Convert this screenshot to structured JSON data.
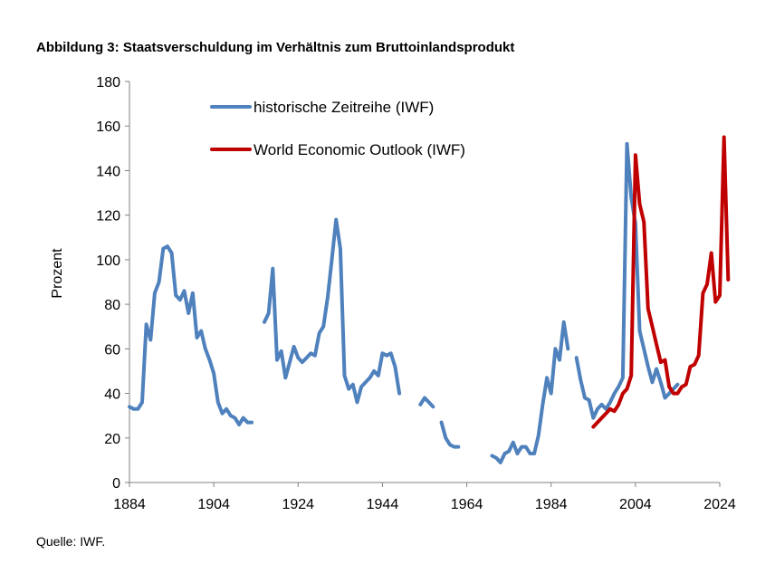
{
  "title": "Abbildung 3: Staatsverschuldung im Verhältnis zum Bruttoinlandsprodukt",
  "source": "Quelle: IWF.",
  "chart_data": {
    "type": "line",
    "title": "Abbildung 3: Staatsverschuldung im Verhältnis zum Bruttoinlandsprodukt",
    "xlabel": "",
    "ylabel": "Prozent",
    "xlim": [
      1884,
      2024
    ],
    "ylim": [
      0,
      180
    ],
    "xticks": [
      1884,
      1904,
      1924,
      1944,
      1964,
      1984,
      2004,
      2024
    ],
    "yticks": [
      0,
      20,
      40,
      60,
      80,
      100,
      120,
      140,
      160,
      180
    ],
    "grid": false,
    "legend_position": "top-left",
    "series": [
      {
        "name": "historische Zeitreihe (IWF)",
        "color": "#4F81BD",
        "segments": [
          [
            [
              1884,
              34
            ],
            [
              1885,
              33
            ],
            [
              1886,
              33
            ],
            [
              1887,
              36
            ],
            [
              1888,
              71
            ],
            [
              1889,
              64
            ],
            [
              1890,
              85
            ],
            [
              1891,
              90
            ],
            [
              1892,
              105
            ],
            [
              1893,
              106
            ],
            [
              1894,
              103
            ],
            [
              1895,
              84
            ],
            [
              1896,
              82
            ],
            [
              1897,
              86
            ],
            [
              1898,
              76
            ],
            [
              1899,
              85
            ],
            [
              1900,
              65
            ],
            [
              1901,
              68
            ],
            [
              1902,
              60
            ],
            [
              1903,
              55
            ],
            [
              1904,
              49
            ],
            [
              1905,
              36
            ],
            [
              1906,
              31
            ],
            [
              1907,
              33
            ],
            [
              1908,
              30
            ],
            [
              1909,
              29
            ],
            [
              1910,
              26
            ],
            [
              1911,
              29
            ],
            [
              1912,
              27
            ],
            [
              1913,
              27
            ]
          ],
          [
            [
              1916,
              72
            ],
            [
              1917,
              76
            ],
            [
              1918,
              96
            ],
            [
              1919,
              55
            ],
            [
              1920,
              59
            ],
            [
              1921,
              47
            ],
            [
              1922,
              54
            ],
            [
              1923,
              61
            ],
            [
              1924,
              56
            ],
            [
              1925,
              54
            ],
            [
              1926,
              56
            ],
            [
              1927,
              58
            ],
            [
              1928,
              57
            ],
            [
              1929,
              67
            ],
            [
              1930,
              70
            ],
            [
              1931,
              83
            ],
            [
              1932,
              100
            ],
            [
              1933,
              118
            ],
            [
              1934,
              105
            ],
            [
              1935,
              48
            ],
            [
              1936,
              42
            ],
            [
              1937,
              44
            ],
            [
              1938,
              36
            ],
            [
              1939,
              43
            ],
            [
              1940,
              45
            ],
            [
              1941,
              47
            ],
            [
              1942,
              50
            ],
            [
              1943,
              48
            ],
            [
              1944,
              58
            ],
            [
              1945,
              57
            ],
            [
              1946,
              58
            ],
            [
              1947,
              52
            ],
            [
              1948,
              40
            ]
          ],
          [
            [
              1953,
              35
            ],
            [
              1954,
              38
            ],
            [
              1955,
              36
            ],
            [
              1956,
              34
            ]
          ],
          [
            [
              1958,
              27
            ],
            [
              1959,
              20
            ],
            [
              1960,
              17
            ],
            [
              1961,
              16
            ],
            [
              1962,
              16
            ]
          ],
          [
            [
              1970,
              12
            ],
            [
              1971,
              11
            ],
            [
              1972,
              9
            ],
            [
              1973,
              13
            ],
            [
              1974,
              14
            ],
            [
              1975,
              18
            ],
            [
              1976,
              13
            ],
            [
              1977,
              16
            ],
            [
              1978,
              16
            ],
            [
              1979,
              13
            ],
            [
              1980,
              13
            ],
            [
              1981,
              21
            ],
            [
              1982,
              35
            ],
            [
              1983,
              47
            ],
            [
              1984,
              40
            ],
            [
              1985,
              60
            ],
            [
              1986,
              55
            ],
            [
              1987,
              72
            ],
            [
              1988,
              60
            ]
          ],
          [
            [
              1990,
              56
            ],
            [
              1991,
              46
            ],
            [
              1992,
              38
            ],
            [
              1993,
              37
            ],
            [
              1994,
              29
            ],
            [
              1995,
              33
            ],
            [
              1996,
              35
            ],
            [
              1997,
              33
            ],
            [
              1998,
              36
            ],
            [
              1999,
              40
            ],
            [
              2000,
              43
            ],
            [
              2001,
              47
            ],
            [
              2002,
              152
            ],
            [
              2003,
              128
            ],
            [
              2004,
              116
            ],
            [
              2005,
              68
            ],
            [
              2006,
              60
            ],
            [
              2007,
              52
            ],
            [
              2008,
              45
            ],
            [
              2009,
              51
            ],
            [
              2010,
              45
            ],
            [
              2011,
              38
            ],
            [
              2012,
              40
            ],
            [
              2013,
              42
            ],
            [
              2014,
              44
            ]
          ]
        ]
      },
      {
        "name": "World Economic Outlook (IWF)",
        "color": "#C00000",
        "segments": [
          [
            [
              1994,
              25
            ],
            [
              1995,
              27
            ],
            [
              1996,
              29
            ],
            [
              1997,
              31
            ],
            [
              1998,
              33
            ],
            [
              1999,
              32
            ],
            [
              2000,
              35
            ],
            [
              2001,
              40
            ],
            [
              2002,
              42
            ],
            [
              2003,
              48
            ],
            [
              2004,
              147
            ],
            [
              2005,
              125
            ],
            [
              2006,
              117
            ],
            [
              2007,
              78
            ],
            [
              2008,
              70
            ],
            [
              2009,
              62
            ],
            [
              2010,
              54
            ],
            [
              2011,
              55
            ],
            [
              2012,
              43
            ],
            [
              2013,
              40
            ],
            [
              2014,
              40
            ],
            [
              2015,
              43
            ],
            [
              2016,
              44
            ],
            [
              2017,
              52
            ],
            [
              2018,
              53
            ],
            [
              2019,
              57
            ],
            [
              2020,
              85
            ],
            [
              2021,
              89
            ],
            [
              2022,
              103
            ],
            [
              2023,
              81
            ],
            [
              2024,
              84
            ],
            [
              2025,
              155
            ],
            [
              2026,
              91
            ]
          ]
        ]
      }
    ]
  }
}
